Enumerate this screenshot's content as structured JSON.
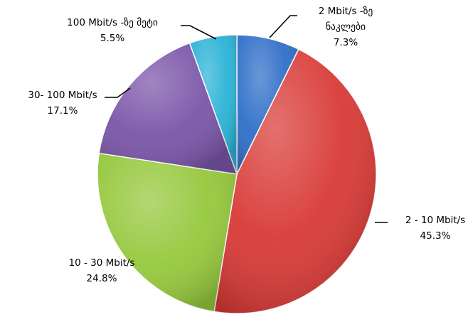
{
  "chart_data": {
    "type": "pie",
    "title": "",
    "slices": [
      {
        "label_lines": [
          "2 Mbit/s -ზე",
          "ნაკლები"
        ],
        "value": 7.3,
        "value_label": "7.3%",
        "color": "#2f6fc8"
      },
      {
        "label_lines": [
          "2 - 10 Mbit/s"
        ],
        "value": 45.3,
        "value_label": "45.3%",
        "color": "#d83a36"
      },
      {
        "label_lines": [
          "10 - 30 Mbit/s"
        ],
        "value": 24.8,
        "value_label": "24.8%",
        "color": "#95c83c"
      },
      {
        "label_lines": [
          "30- 100 Mbit/s"
        ],
        "value": 17.1,
        "value_label": "17.1%",
        "color": "#7a55a8"
      },
      {
        "label_lines": [
          "100 Mbit/s -ზე მეტი"
        ],
        "value": 5.5,
        "value_label": "5.5%",
        "color": "#2bb3d6"
      }
    ]
  }
}
